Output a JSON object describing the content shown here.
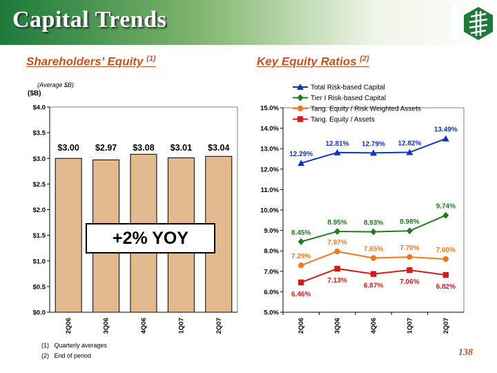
{
  "title": "Capital Trends",
  "page_number": "138",
  "left_section": {
    "title": "Shareholders’ Equity",
    "superscript": "(1)",
    "subtitle": "(Average $B)",
    "unit_label": "($B)"
  },
  "right_section": {
    "title": "Key Equity Ratios",
    "superscript": "(2)"
  },
  "callout": "+2% YOY",
  "footnotes": [
    {
      "marker": "(1)",
      "text": "Quarterly averages"
    },
    {
      "marker": "(2)",
      "text": "End of period"
    }
  ],
  "colors": {
    "bar": "#e3b98e",
    "accent": "#c8501e",
    "green": "#1d7a3a"
  },
  "chart_data": [
    {
      "type": "bar",
      "categories": [
        "2Q06",
        "3Q06",
        "4Q06",
        "1Q07",
        "2Q07"
      ],
      "values": [
        3.0,
        2.97,
        3.08,
        3.01,
        3.04
      ],
      "data_labels": [
        "$3.00",
        "$2.97",
        "$3.08",
        "$3.01",
        "$3.04"
      ],
      "ylim": [
        0,
        4
      ],
      "yticks": [
        "$0.0",
        "$0.5",
        "$1.0",
        "$1.5",
        "$2.0",
        "$2.5",
        "$3.0",
        "$3.5",
        "$4.0"
      ],
      "ytick_values": [
        0,
        0.5,
        1,
        1.5,
        2,
        2.5,
        3,
        3.5,
        4
      ]
    },
    {
      "type": "line",
      "categories": [
        "2Q06",
        "3Q06",
        "4Q06",
        "1Q07",
        "2Q07"
      ],
      "ylim": [
        5,
        15
      ],
      "yticks": [
        "5.0%",
        "6.0%",
        "7.0%",
        "8.0%",
        "9.0%",
        "10.0%",
        "11.0%",
        "12.0%",
        "13.0%",
        "14.0%",
        "15.0%"
      ],
      "ytick_values": [
        5,
        6,
        7,
        8,
        9,
        10,
        11,
        12,
        13,
        14,
        15
      ],
      "legend_position": "top",
      "series": [
        {
          "name": "Total Risk-based Capital",
          "color": "#1230c8",
          "marker": "triangle",
          "values": [
            12.29,
            12.81,
            12.79,
            12.82,
            13.49
          ],
          "labels": [
            "12.29%",
            "12.81%",
            "12.79%",
            "12.82%",
            "13.49%"
          ],
          "label_pos": "above"
        },
        {
          "name": "Tier I Risk-based Capital",
          "color": "#1d7a1d",
          "marker": "diamond",
          "values": [
            8.45,
            8.95,
            8.93,
            8.98,
            9.74
          ],
          "labels": [
            "8.45%",
            "8.95%",
            "8.93%",
            "8.98%",
            "9.74%"
          ],
          "label_pos": "above"
        },
        {
          "name": "Tang. Equity / Risk Weighted Assets",
          "color": "#ee7a1d",
          "marker": "circle",
          "values": [
            7.29,
            7.97,
            7.65,
            7.7,
            7.6
          ],
          "labels": [
            "7.29%",
            "7.97%",
            "7.65%",
            "7.70%",
            "7.60%"
          ],
          "label_pos": "above"
        },
        {
          "name": "Tang. Equity / Assets",
          "color": "#d41a1a",
          "marker": "square",
          "values": [
            6.46,
            7.13,
            6.87,
            7.06,
            6.82
          ],
          "labels": [
            "6.46%",
            "7.13%",
            "6.87%",
            "7.06%",
            "6.82%"
          ],
          "label_pos": "below"
        }
      ]
    }
  ]
}
